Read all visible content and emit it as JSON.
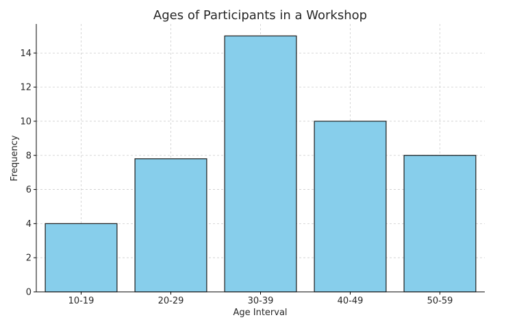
{
  "chart_data": {
    "type": "bar",
    "title": "Ages of Participants in a Workshop",
    "xlabel": "Age Interval",
    "ylabel": "Frequency",
    "categories": [
      "10-19",
      "20-29",
      "30-39",
      "40-49",
      "50-59"
    ],
    "values": [
      4,
      7.8,
      15,
      10,
      8
    ],
    "ylim": [
      0,
      15.7
    ],
    "yticks": [
      0,
      2,
      4,
      6,
      8,
      10,
      12,
      14
    ],
    "grid": true,
    "colors": {
      "bar_fill": "#87ceeb",
      "bar_edge": "#1a1a1a",
      "grid": "#cccccc",
      "axis": "#000000"
    }
  }
}
